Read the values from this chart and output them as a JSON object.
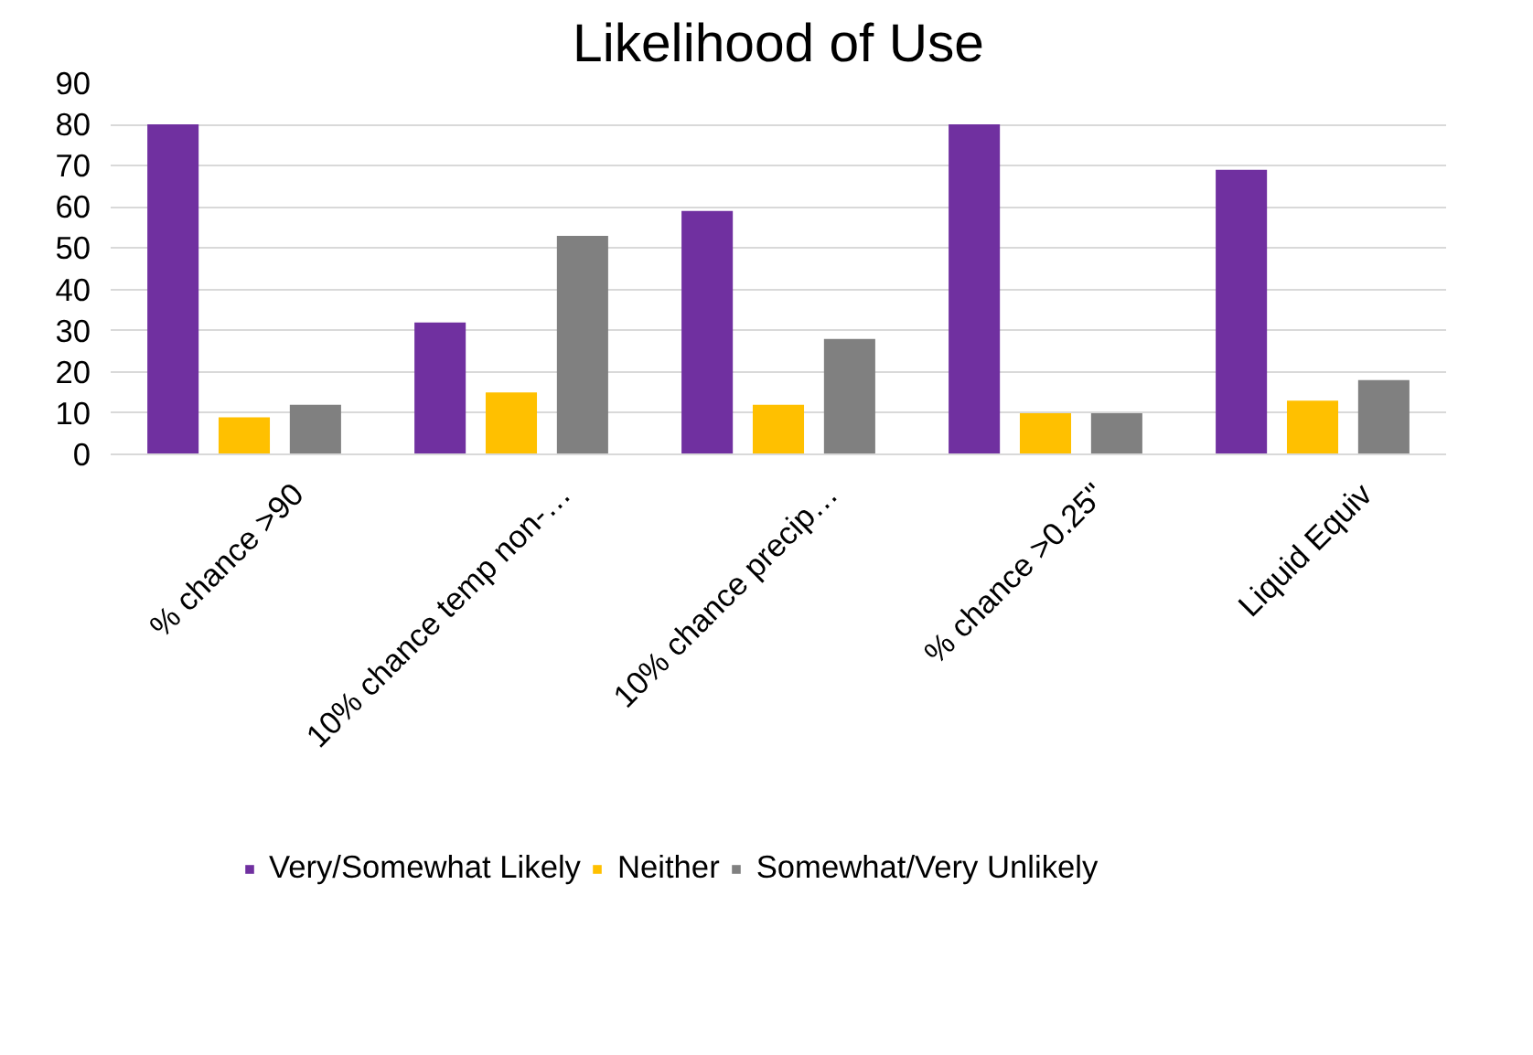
{
  "chart_data": {
    "type": "bar",
    "title": "Likelihood of Use",
    "categories": [
      "% chance >90",
      "10% chance temp non-…",
      "10% chance precip…",
      "% chance >0.25\"",
      "Liquid Equiv"
    ],
    "series": [
      {
        "name": "Very/Somewhat Likely",
        "color": "#7030a0",
        "values": [
          80,
          32,
          59,
          80,
          69
        ]
      },
      {
        "name": "Neither",
        "color": "#ffc000",
        "values": [
          9,
          15,
          12,
          10,
          13
        ]
      },
      {
        "name": "Somewhat/Very Unlikely",
        "color": "#808080",
        "values": [
          12,
          53,
          28,
          10,
          18
        ]
      }
    ],
    "ylim": [
      0,
      90
    ],
    "yticks": [
      0,
      10,
      20,
      30,
      40,
      50,
      60,
      70,
      80,
      90
    ],
    "grid": "y",
    "legend": "bottom"
  }
}
